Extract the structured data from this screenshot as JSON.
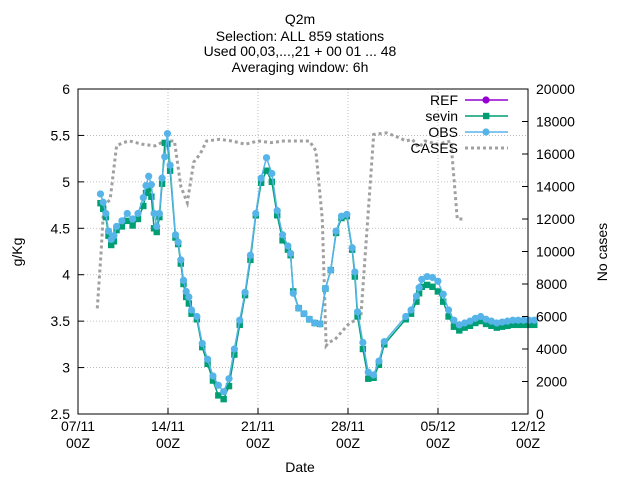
{
  "chart_data": {
    "type": "line",
    "title": "Q2m",
    "subtitle_lines": [
      "Selection: ALL    859 stations",
      "Used 00,03,...,21 + 00 01 ... 48",
      "Averaging window:  6h"
    ],
    "xlabel": "Date",
    "ylabel": "g/Kg",
    "y2label": "No cases",
    "ylim": [
      2.5,
      6
    ],
    "y2lim": [
      0,
      20000
    ],
    "yticks": [
      "2.5",
      "3",
      "3.5",
      "4",
      "4.5",
      "5",
      "5.5",
      "6"
    ],
    "y2ticks": [
      "0",
      "2000",
      "4000",
      "6000",
      "8000",
      "10000",
      "12000",
      "14000",
      "16000",
      "18000",
      "20000"
    ],
    "xticks": [
      {
        "l1": "07/11",
        "l2": "00Z"
      },
      {
        "l1": "14/11",
        "l2": "00Z"
      },
      {
        "l1": "21/11",
        "l2": "00Z"
      },
      {
        "l1": "28/11",
        "l2": "00Z"
      },
      {
        "l1": "05/12",
        "l2": "00Z"
      },
      {
        "l1": "12/12",
        "l2": "00Z"
      }
    ],
    "grid": true,
    "legend_position": "top-right",
    "series": [
      {
        "name": "REF",
        "color": "#9400d3"
      },
      {
        "name": "sevin",
        "color": "#009e73"
      },
      {
        "name": "OBS",
        "color": "#56b4e9"
      },
      {
        "name": "CASES",
        "color": "#a0a0a0"
      }
    ],
    "x_days": [
      1.5,
      1.75,
      2,
      2.25,
      2.5,
      2.75,
      3,
      3.5,
      4,
      4.5,
      5,
      5.5,
      5.75,
      6,
      6.25,
      6.5,
      6.75,
      7,
      7.25,
      7.5,
      7.75,
      8,
      8.5,
      8.75,
      9,
      9.25,
      9.5,
      9.75,
      10,
      10.5,
      11,
      11.5,
      12,
      12.5,
      13,
      13.5,
      14,
      14.5,
      15,
      15.5,
      16,
      16.5,
      17,
      17.5,
      18,
      18.5,
      19,
      19.25,
      19.5,
      20,
      20.5,
      21,
      21.5,
      22,
      22.5,
      23,
      23.5,
      24,
      24.5,
      25,
      25.25,
      25.5,
      26,
      26.5,
      27,
      27.5,
      28,
      30,
      30.5,
      31,
      31.25,
      31.5,
      32,
      32.5,
      33,
      33.5,
      34,
      34.5,
      35,
      35.5,
      36,
      36.5,
      37,
      37.5,
      38,
      38.5,
      39,
      39.5,
      40,
      40.5,
      41,
      41.5,
      42
    ],
    "obs": [
      4.87,
      4.78,
      4.66,
      4.47,
      4.38,
      4.42,
      4.52,
      4.58,
      4.66,
      4.6,
      4.66,
      4.83,
      4.96,
      5.06,
      4.97,
      4.66,
      4.52,
      4.66,
      5.04,
      5.27,
      5.52,
      5.18,
      4.43,
      4.35,
      4.16,
      3.94,
      3.82,
      3.76,
      3.62,
      3.55,
      3.26,
      3.09,
      2.91,
      2.81,
      2.74,
      2.88,
      3.2,
      3.51,
      3.81,
      4.21,
      4.66,
      5.04,
      5.26,
      5.09,
      4.69,
      4.43,
      4.31,
      4.23,
      3.8,
      3.64,
      3.58,
      3.52,
      3.48,
      3.47,
      3.85,
      4.05,
      4.47,
      4.63,
      4.65,
      4.29,
      4.03,
      3.6,
      3.27,
      2.95,
      2.92,
      3.07,
      3.28,
      3.55,
      3.62,
      3.77,
      3.86,
      3.95,
      3.98,
      3.97,
      3.93,
      3.79,
      3.62,
      3.51,
      3.46,
      3.48,
      3.5,
      3.53,
      3.55,
      3.52,
      3.5,
      3.48,
      3.49,
      3.5,
      3.51,
      3.51,
      3.51,
      3.51,
      3.51
    ],
    "sevin": [
      4.77,
      4.71,
      4.62,
      4.42,
      4.32,
      4.36,
      4.48,
      4.52,
      4.58,
      4.53,
      4.6,
      4.74,
      4.88,
      4.93,
      4.84,
      4.5,
      4.46,
      4.62,
      4.98,
      5.42,
      5.41,
      5.12,
      4.4,
      4.33,
      4.12,
      3.9,
      3.76,
      3.69,
      3.58,
      3.52,
      3.22,
      3.04,
      2.86,
      2.7,
      2.66,
      2.8,
      3.14,
      3.46,
      3.78,
      4.16,
      4.64,
      4.99,
      5.12,
      5.0,
      4.64,
      4.37,
      4.27,
      4.21,
      3.82,
      3.64,
      3.58,
      3.52,
      3.48,
      3.47,
      3.85,
      4.05,
      4.45,
      4.61,
      4.63,
      4.27,
      3.98,
      3.55,
      3.2,
      2.88,
      2.89,
      3.03,
      3.25,
      3.52,
      3.58,
      3.71,
      3.8,
      3.87,
      3.89,
      3.87,
      3.82,
      3.71,
      3.55,
      3.44,
      3.4,
      3.43,
      3.45,
      3.48,
      3.5,
      3.47,
      3.45,
      3.43,
      3.44,
      3.45,
      3.46,
      3.46,
      3.46,
      3.46,
      3.46
    ],
    "cases_x": [
      1.5,
      1.8,
      2,
      2.5,
      3,
      3.5,
      4,
      5,
      6,
      6.5,
      7,
      7.5,
      8,
      8.5,
      9,
      9.5,
      10,
      11,
      12,
      13,
      14,
      15,
      16,
      17,
      18,
      18.5,
      19,
      19.3,
      19.5,
      20,
      21,
      22,
      23,
      24,
      25,
      25.5,
      26,
      26.5,
      27,
      27.5,
      28,
      28.5,
      29,
      29.5,
      30
    ],
    "cases": [
      6500,
      10000,
      12800,
      13200,
      16500,
      16700,
      16800,
      16600,
      16500,
      16700,
      16800,
      16800,
      14000,
      13000,
      15500,
      16000,
      16800,
      16900,
      16800,
      16600,
      16800,
      16700,
      16800,
      16800,
      16800,
      16200,
      12000,
      4200,
      4400,
      4600,
      5500,
      6000,
      17200,
      17300,
      17000,
      16800,
      16900,
      16400,
      16800,
      16700,
      16600,
      16700,
      16800,
      12000,
      12000
    ]
  }
}
